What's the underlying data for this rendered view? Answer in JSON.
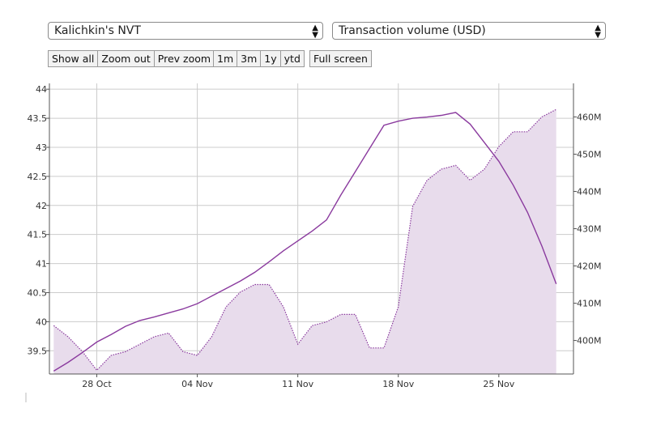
{
  "controls": {
    "metric_select": "Kalichkin's NVT",
    "volume_select": "Transaction volume (USD)",
    "nav_buttons": [
      "Show all",
      "Zoom out",
      "Prev zoom"
    ],
    "period_buttons": [
      "1m",
      "3m",
      "1y",
      "ytd"
    ],
    "fullscreen_button": "Full screen"
  },
  "chart_data": {
    "type": "line",
    "x_tick_labels": [
      "28 Oct",
      "04 Nov",
      "11 Nov",
      "18 Nov",
      "25 Nov"
    ],
    "y_left_ticks": [
      "39.5",
      "40",
      "40.5",
      "41",
      "41.5",
      "42",
      "42.5",
      "43",
      "43.5",
      "44"
    ],
    "y_right_ticks": [
      "400M",
      "410M",
      "420M",
      "430M",
      "440M",
      "450M",
      "460M"
    ],
    "ylim_left": [
      39.1,
      44.1
    ],
    "ylim_right": [
      391,
      469
    ],
    "series": [
      {
        "axis": "left",
        "style": "solid",
        "color": "#8a3a9e",
        "x": [
          0,
          1,
          2,
          3,
          4,
          5,
          6,
          7,
          8,
          9,
          10,
          11,
          12,
          13,
          14,
          15,
          16,
          17,
          18,
          19,
          20,
          21,
          22,
          23,
          24,
          25,
          26,
          27,
          28,
          29,
          30,
          31,
          32,
          33,
          34,
          35
        ],
        "values": [
          39.15,
          39.3,
          39.47,
          39.65,
          39.78,
          39.92,
          40.02,
          40.08,
          40.15,
          40.22,
          40.31,
          40.44,
          40.57,
          40.7,
          40.85,
          41.03,
          41.22,
          41.39,
          41.56,
          41.75,
          42.18,
          42.58,
          42.98,
          43.38,
          43.45,
          43.5,
          43.52,
          43.55,
          43.6,
          43.4,
          43.08,
          42.76,
          42.35,
          41.88,
          41.3,
          40.65
        ]
      },
      {
        "axis": "right",
        "style": "dotted-area",
        "color": "#8a3a9e",
        "fill": "#e8dcec",
        "x": [
          0,
          1,
          2,
          3,
          4,
          5,
          6,
          7,
          8,
          9,
          10,
          11,
          12,
          13,
          14,
          15,
          16,
          17,
          18,
          19,
          20,
          21,
          22,
          23,
          24,
          25,
          26,
          27,
          28,
          29,
          30,
          31,
          32,
          33,
          34,
          35
        ],
        "values": [
          404,
          401,
          397,
          392,
          396,
          397,
          399,
          401,
          402,
          397,
          396,
          401,
          409,
          413,
          415,
          415,
          409,
          399,
          404,
          405,
          407,
          407,
          398,
          398,
          409,
          436,
          443,
          446,
          447,
          443,
          446,
          452,
          456,
          456,
          460,
          462
        ]
      }
    ],
    "grid": true
  }
}
